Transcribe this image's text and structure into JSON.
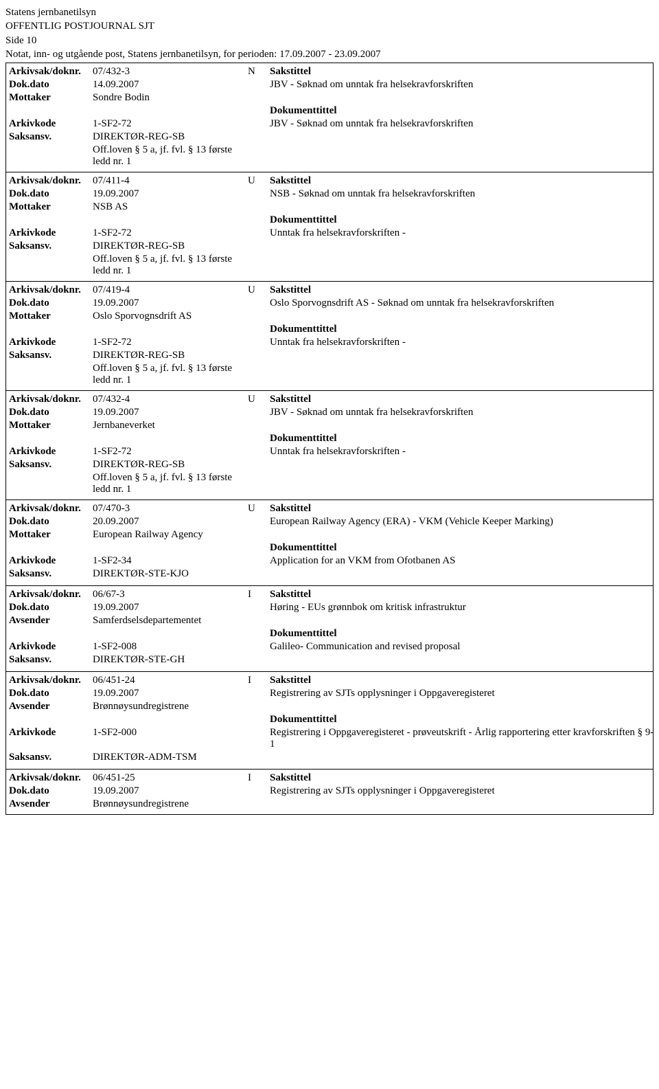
{
  "header": {
    "org": "Statens jernbanetilsyn",
    "title": "OFFENTLIG POSTJOURNAL SJT",
    "page": "Side 10",
    "scope": "Notat, inn- og utgående post, Statens jernbanetilsyn, for perioden: 17.09.2007 - 23.09.2007"
  },
  "labels": {
    "arkivsak": "Arkivsak/doknr.",
    "dokdato": "Dok.dato",
    "mottaker": "Mottaker",
    "avsender": "Avsender",
    "arkivkode": "Arkivkode",
    "saksansv": "Saksansv.",
    "sakstittel": "Sakstittel",
    "dokumenttittel": "Dokumenttittel"
  },
  "records": [
    {
      "doknr": "07/432-3",
      "dir": "N",
      "dato": "14.09.2007",
      "partyLabel": "Mottaker",
      "party": "Sondre Bodin",
      "arkivkode": "1-SF2-72",
      "saksansv": "DIREKTØR-REG-SB",
      "off": "Off.loven § 5 a, jf. fvl. § 13 første ledd nr. 1",
      "sakstittel": "JBV - Søknad om unntak fra helsekravforskriften",
      "doktittel": "JBV - Søknad om unntak fra helsekravforskriften"
    },
    {
      "doknr": "07/411-4",
      "dir": "U",
      "dato": "19.09.2007",
      "partyLabel": "Mottaker",
      "party": "NSB AS",
      "arkivkode": "1-SF2-72",
      "saksansv": "DIREKTØR-REG-SB",
      "off": "Off.loven § 5 a, jf. fvl. § 13 første ledd nr. 1",
      "sakstittel": "NSB - Søknad om unntak fra helsekravforskriften",
      "doktittel": "Unntak fra helsekravforskriften -"
    },
    {
      "doknr": "07/419-4",
      "dir": "U",
      "dato": "19.09.2007",
      "partyLabel": "Mottaker",
      "party": "Oslo Sporvognsdrift AS",
      "arkivkode": "1-SF2-72",
      "saksansv": "DIREKTØR-REG-SB",
      "off": "Off.loven § 5 a, jf. fvl. § 13 første ledd nr. 1",
      "sakstittel": "Oslo Sporvognsdrift AS - Søknad om unntak fra helsekravforskriften",
      "doktittel": "Unntak fra helsekravforskriften -"
    },
    {
      "doknr": "07/432-4",
      "dir": "U",
      "dato": "19.09.2007",
      "partyLabel": "Mottaker",
      "party": "Jernbaneverket",
      "arkivkode": "1-SF2-72",
      "saksansv": "DIREKTØR-REG-SB",
      "off": "Off.loven § 5 a, jf. fvl. § 13 første ledd nr. 1",
      "sakstittel": "JBV - Søknad om unntak fra helsekravforskriften",
      "doktittel": "Unntak fra helsekravforskriften -"
    },
    {
      "doknr": "07/470-3",
      "dir": "U",
      "dato": "20.09.2007",
      "partyLabel": "Mottaker",
      "party": "European Railway Agency",
      "arkivkode": "1-SF2-34",
      "saksansv": "DIREKTØR-STE-KJO",
      "off": "",
      "sakstittel": "European Railway Agency (ERA) - VKM (Vehicle Keeper Marking)",
      "doktittel": "Application for an VKM from Ofotbanen AS"
    },
    {
      "doknr": "06/67-3",
      "dir": "I",
      "dato": "19.09.2007",
      "partyLabel": "Avsender",
      "party": "Samferdselsdepartementet",
      "arkivkode": "1-SF2-008",
      "saksansv": "DIREKTØR-STE-GH",
      "off": "",
      "sakstittel": "Høring - EUs grønnbok om kritisk infrastruktur",
      "doktittel": "Galileo-  Communication and revised proposal"
    },
    {
      "doknr": "06/451-24",
      "dir": "I",
      "dato": "19.09.2007",
      "partyLabel": "Avsender",
      "party": "Brønnøysundregistrene",
      "arkivkode": "1-SF2-000",
      "saksansv": "DIREKTØR-ADM-TSM",
      "off": "",
      "sakstittel": "Registrering av SJTs opplysninger i Oppgaveregisteret",
      "doktittel": "Registrering i Oppgaveregisteret - prøveutskrift - Årlig rapportering etter kravforskriften § 9-1"
    },
    {
      "doknr": "06/451-25",
      "dir": "I",
      "dato": "19.09.2007",
      "partyLabel": "Avsender",
      "party": "Brønnøysundregistrene",
      "arkivkode": "",
      "saksansv": "",
      "off": "",
      "sakstittel": "Registrering av SJTs opplysninger i Oppgaveregisteret",
      "doktittel": "",
      "truncated": true
    }
  ]
}
